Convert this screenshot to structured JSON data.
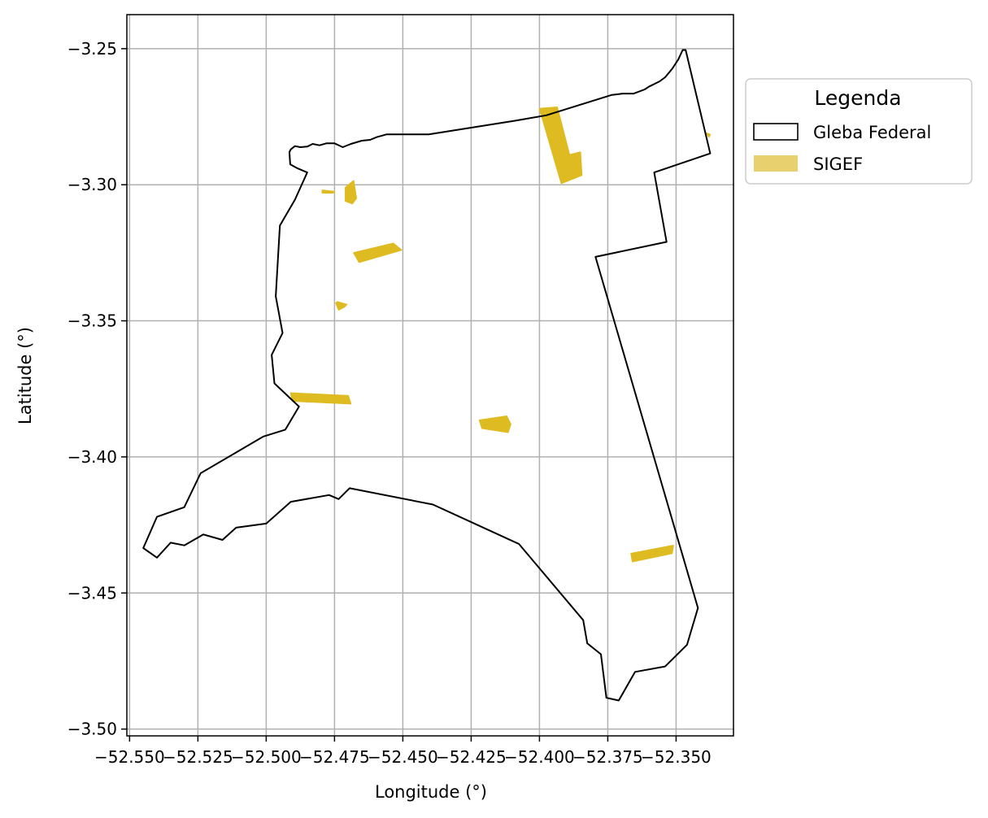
{
  "chart_data": {
    "type": "map",
    "xlabel": "Longitude (°)",
    "ylabel": "Latitude (°)",
    "xlim": [
      -52.551,
      -52.329
    ],
    "ylim": [
      -3.5025,
      -3.2375
    ],
    "grid": true,
    "x_ticks": [
      -52.55,
      -52.525,
      -52.5,
      -52.475,
      -52.45,
      -52.425,
      -52.4,
      -52.375,
      -52.35
    ],
    "x_tick_labels": [
      "−52.550",
      "−52.525",
      "−52.500",
      "−52.475",
      "−52.450",
      "−52.425",
      "−52.400",
      "−52.375",
      "−52.350"
    ],
    "y_ticks": [
      -3.25,
      -3.3,
      -3.35,
      -3.4,
      -3.45,
      -3.5
    ],
    "y_tick_labels": [
      "−3.25",
      "−3.30",
      "−3.35",
      "−3.40",
      "−3.45",
      "−3.50"
    ],
    "legend": {
      "title": "Legenda",
      "placement": "outside-upper-right",
      "entries": [
        {
          "label": "Gleba Federal",
          "style": "outline",
          "edge_color": "#000000",
          "fill_color": "#ffffff"
        },
        {
          "label": "SIGEF",
          "style": "filled",
          "fill_color": "#e8d06e"
        }
      ]
    },
    "layers": [
      {
        "name": "Gleba Federal",
        "type": "polygon",
        "edge_color": "#000000",
        "fill": "none",
        "coordinates": [
          [
            -52.3465,
            -3.2505
          ],
          [
            -52.3476,
            -3.2505
          ],
          [
            -52.3492,
            -3.254
          ],
          [
            -52.3515,
            -3.2575
          ],
          [
            -52.354,
            -3.2605
          ],
          [
            -52.356,
            -3.262
          ],
          [
            -52.358,
            -3.263
          ],
          [
            -52.36,
            -3.264
          ],
          [
            -52.3615,
            -3.265
          ],
          [
            -52.3655,
            -3.2665
          ],
          [
            -52.3695,
            -3.2665
          ],
          [
            -52.3735,
            -3.267
          ],
          [
            -52.3975,
            -3.2745
          ],
          [
            -52.409,
            -3.2765
          ],
          [
            -52.4405,
            -3.2815
          ],
          [
            -52.456,
            -3.2815
          ],
          [
            -52.4595,
            -3.2825
          ],
          [
            -52.462,
            -3.2835
          ],
          [
            -52.465,
            -3.2838
          ],
          [
            -52.469,
            -3.285
          ],
          [
            -52.472,
            -3.2862
          ],
          [
            -52.475,
            -3.2848
          ],
          [
            -52.478,
            -3.2848
          ],
          [
            -52.4805,
            -3.2855
          ],
          [
            -52.483,
            -3.285
          ],
          [
            -52.485,
            -3.286
          ],
          [
            -52.4875,
            -3.2862
          ],
          [
            -52.4895,
            -3.2858
          ],
          [
            -52.491,
            -3.287
          ],
          [
            -52.4915,
            -3.288
          ],
          [
            -52.4912,
            -3.2925
          ],
          [
            -52.4885,
            -3.294
          ],
          [
            -52.485,
            -3.2955
          ],
          [
            -52.4895,
            -3.3055
          ],
          [
            -52.495,
            -3.315
          ],
          [
            -52.4965,
            -3.341
          ],
          [
            -52.494,
            -3.3545
          ],
          [
            -52.498,
            -3.3625
          ],
          [
            -52.497,
            -3.373
          ],
          [
            -52.488,
            -3.3815
          ],
          [
            -52.493,
            -3.39
          ],
          [
            -52.501,
            -3.3925
          ],
          [
            -52.524,
            -3.406
          ],
          [
            -52.53,
            -3.4185
          ],
          [
            -52.54,
            -3.422
          ],
          [
            -52.545,
            -3.4335
          ],
          [
            -52.54,
            -3.437
          ],
          [
            -52.535,
            -3.4315
          ],
          [
            -52.53,
            -3.4325
          ],
          [
            -52.523,
            -3.4285
          ],
          [
            -52.516,
            -3.4305
          ],
          [
            -52.511,
            -3.426
          ],
          [
            -52.5,
            -3.4245
          ],
          [
            -52.491,
            -3.4165
          ],
          [
            -52.477,
            -3.414
          ],
          [
            -52.4735,
            -3.4155
          ],
          [
            -52.4695,
            -3.4115
          ],
          [
            -52.439,
            -3.4175
          ],
          [
            -52.4075,
            -3.432
          ],
          [
            -52.384,
            -3.46
          ],
          [
            -52.3825,
            -3.4685
          ],
          [
            -52.3775,
            -3.4725
          ],
          [
            -52.3755,
            -3.4885
          ],
          [
            -52.371,
            -3.4895
          ],
          [
            -52.365,
            -3.479
          ],
          [
            -52.354,
            -3.477
          ],
          [
            -52.346,
            -3.469
          ],
          [
            -52.342,
            -3.4555
          ],
          [
            -52.3795,
            -3.3265
          ],
          [
            -52.3535,
            -3.321
          ],
          [
            -52.358,
            -3.2955
          ],
          [
            -52.3375,
            -3.2885
          ]
        ]
      },
      {
        "name": "SIGEF",
        "type": "polygons",
        "fill_color": "#dfbb22",
        "features": [
          [
            [
              -52.4,
              -3.272
            ],
            [
              -52.3935,
              -3.2715
            ],
            [
              -52.389,
              -3.289
            ],
            [
              -52.385,
              -3.288
            ],
            [
              -52.3845,
              -3.2965
            ],
            [
              -52.392,
              -3.2995
            ]
          ],
          [
            [
              -52.4535,
              -3.3215
            ],
            [
              -52.4505,
              -3.324
            ],
            [
              -52.466,
              -3.3285
            ],
            [
              -52.468,
              -3.325
            ]
          ],
          [
            [
              -52.491,
              -3.3765
            ],
            [
              -52.4905,
              -3.3795
            ],
            [
              -52.469,
              -3.3805
            ],
            [
              -52.47,
              -3.3775
            ]
          ],
          [
            [
              -52.4105,
              -3.388
            ],
            [
              -52.4115,
              -3.391
            ],
            [
              -52.421,
              -3.3895
            ],
            [
              -52.422,
              -3.3865
            ],
            [
              -52.412,
              -3.385
            ]
          ],
          [
            [
              -52.3665,
              -3.4355
            ],
            [
              -52.366,
              -3.4385
            ],
            [
              -52.3515,
              -3.4355
            ],
            [
              -52.351,
              -3.4325
            ]
          ],
          [
            [
              -52.471,
              -3.301
            ],
            [
              -52.468,
              -3.2985
            ],
            [
              -52.467,
              -3.305
            ],
            [
              -52.4685,
              -3.307
            ],
            [
              -52.471,
              -3.306
            ]
          ],
          [
            [
              -52.4745,
              -3.3435
            ],
            [
              -52.4735,
              -3.346
            ],
            [
              -52.4715,
              -3.345
            ],
            [
              -52.4705,
              -3.344
            ],
            [
              -52.474,
              -3.343
            ]
          ],
          [
            [
              -52.4795,
              -3.302
            ],
            [
              -52.475,
              -3.3025
            ],
            [
              -52.4755,
              -3.303
            ],
            [
              -52.4795,
              -3.303
            ]
          ],
          [
            [
              -52.339,
              -3.281
            ],
            [
              -52.3375,
              -3.2815
            ],
            [
              -52.338,
              -3.2825
            ]
          ]
        ]
      }
    ]
  }
}
